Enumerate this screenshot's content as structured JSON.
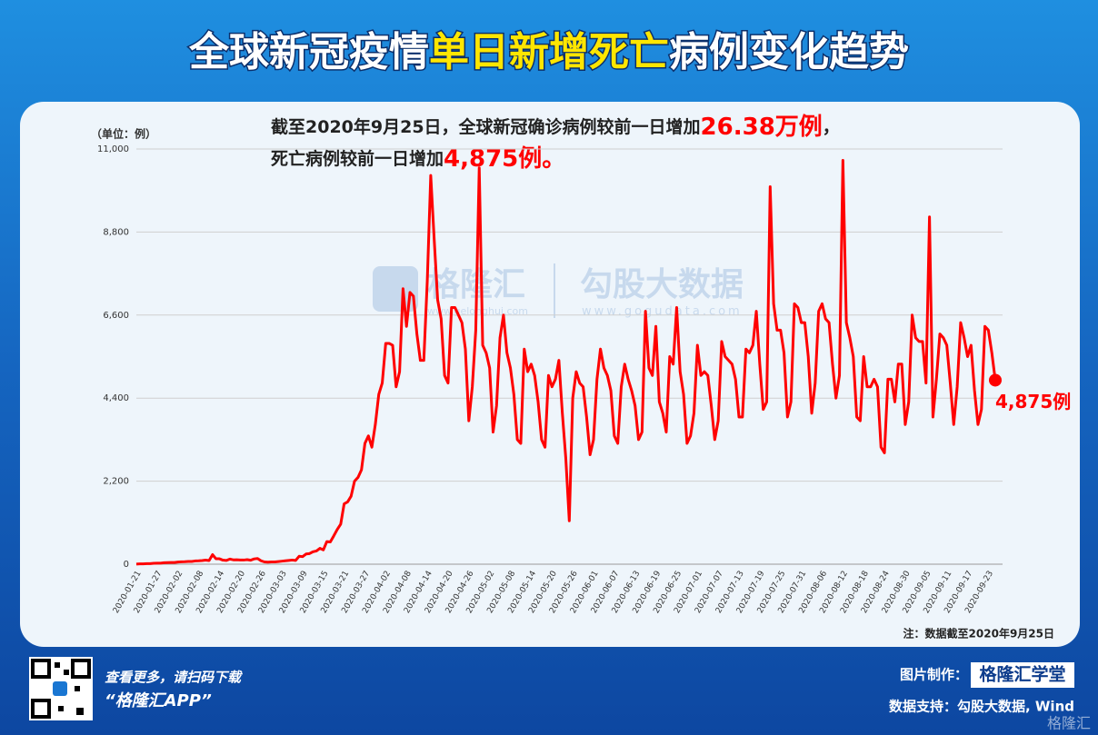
{
  "header": {
    "title_parts": [
      "全球新冠疫情",
      "单日新增死亡",
      "病例变化趋势"
    ]
  },
  "chart_data": {
    "type": "line",
    "unit_label": "（单位：例）",
    "subtitle": {
      "line1": [
        "截至2020年9月25日，全球新冠确诊病例较前一日增加",
        "26.38万例",
        "，"
      ],
      "line2": [
        "死亡病例较前一日增加",
        "4,875例。"
      ]
    },
    "note": "注：数据截至2020年9月25日",
    "watermarks": [
      "格隆汇",
      "www.gelonghui.com",
      "勾股大数据",
      "www.gogudata.com"
    ],
    "color": "#ff0000",
    "grid": true,
    "ylim": [
      0,
      11000
    ],
    "yticks": [
      0,
      {
        "value": 2200,
        "label": "2,200"
      },
      {
        "value": 4400,
        "label": "4,400"
      },
      {
        "value": 6600,
        "label": "6,600"
      },
      {
        "value": 8800,
        "label": "8,800"
      },
      {
        "value": 11000,
        "label": "11,000"
      }
    ],
    "categories": [
      "2020-01-21",
      null,
      null,
      null,
      null,
      null,
      "2020-01-27",
      null,
      null,
      null,
      null,
      null,
      "2020-02-02",
      null,
      null,
      null,
      null,
      null,
      "2020-02-08",
      null,
      null,
      null,
      null,
      null,
      "2020-02-14",
      null,
      null,
      null,
      null,
      null,
      "2020-02-20",
      null,
      null,
      null,
      null,
      null,
      "2020-02-26",
      null,
      null,
      null,
      null,
      null,
      "2020-03-03",
      null,
      null,
      null,
      null,
      null,
      "2020-03-09",
      null,
      null,
      null,
      null,
      null,
      "2020-03-15",
      null,
      null,
      null,
      null,
      null,
      "2020-03-21",
      null,
      null,
      null,
      null,
      null,
      "2020-03-27",
      null,
      null,
      null,
      null,
      null,
      "2020-04-02",
      null,
      null,
      null,
      null,
      null,
      "2020-04-08",
      null,
      null,
      null,
      null,
      null,
      "2020-04-14",
      null,
      null,
      null,
      null,
      null,
      "2020-04-20",
      null,
      null,
      null,
      null,
      null,
      "2020-04-26",
      null,
      null,
      null,
      null,
      null,
      "2020-05-02",
      null,
      null,
      null,
      null,
      null,
      "2020-05-08",
      null,
      null,
      null,
      null,
      null,
      "2020-05-14",
      null,
      null,
      null,
      null,
      null,
      "2020-05-20",
      null,
      null,
      null,
      null,
      null,
      "2020-05-26",
      null,
      null,
      null,
      null,
      null,
      "2020-06-01",
      null,
      null,
      null,
      null,
      null,
      "2020-06-07",
      null,
      null,
      null,
      null,
      null,
      "2020-06-13",
      null,
      null,
      null,
      null,
      null,
      "2020-06-19",
      null,
      null,
      null,
      null,
      null,
      "2020-06-25",
      null,
      null,
      null,
      null,
      null,
      "2020-07-01",
      null,
      null,
      null,
      null,
      null,
      "2020-07-07",
      null,
      null,
      null,
      null,
      null,
      "2020-07-13",
      null,
      null,
      null,
      null,
      null,
      "2020-07-19",
      null,
      null,
      null,
      null,
      null,
      "2020-07-25",
      null,
      null,
      null,
      null,
      null,
      "2020-07-31",
      null,
      null,
      null,
      null,
      null,
      "2020-08-06",
      null,
      null,
      null,
      null,
      null,
      "2020-08-12",
      null,
      null,
      null,
      null,
      null,
      "2020-08-18",
      null,
      null,
      null,
      null,
      null,
      "2020-08-24",
      null,
      null,
      null,
      null,
      null,
      "2020-08-30",
      null,
      null,
      null,
      null,
      null,
      "2020-09-05",
      null,
      null,
      null,
      null,
      null,
      "2020-09-11",
      null,
      null,
      null,
      null,
      null,
      "2020-09-17",
      null,
      null,
      null,
      null,
      null,
      "2020-09-23",
      null,
      null
    ],
    "values": [
      3,
      9,
      8,
      16,
      15,
      24,
      26,
      26,
      38,
      43,
      46,
      45,
      57,
      64,
      66,
      73,
      73,
      86,
      89,
      97,
      108,
      97,
      254,
      143,
      143,
      107,
      100,
      136,
      115,
      118,
      110,
      110,
      120,
      105,
      140,
      150,
      90,
      60,
      55,
      60,
      60,
      70,
      80,
      90,
      100,
      110,
      100,
      210,
      200,
      270,
      280,
      330,
      350,
      420,
      380,
      600,
      590,
      750,
      920,
      1060,
      1600,
      1650,
      1800,
      2200,
      2300,
      2500,
      3200,
      3400,
      3100,
      3700,
      4500,
      4800,
      5850,
      5850,
      5800,
      4700,
      5100,
      7300,
      6300,
      7200,
      7100,
      6100,
      5400,
      5400,
      7500,
      10300,
      8600,
      7000,
      6500,
      5000,
      4800,
      6800,
      6800,
      6600,
      6400,
      5700,
      3800,
      4700,
      6200,
      10500,
      5800,
      5600,
      5200,
      3500,
      4200,
      6000,
      6600,
      5600,
      5200,
      4500,
      3300,
      3200,
      5700,
      5100,
      5300,
      5000,
      4300,
      3300,
      3100,
      5000,
      4700,
      4900,
      5400,
      4000,
      2800,
      1150,
      4400,
      5100,
      4800,
      4700,
      3900,
      2900,
      3300,
      4900,
      5700,
      5200,
      5000,
      4600,
      3400,
      3200,
      4700,
      5300,
      4900,
      4600,
      4200,
      3300,
      3500,
      6700,
      5200,
      5000,
      6300,
      4300,
      4000,
      3500,
      5500,
      5300,
      6800,
      5100,
      4500,
      3200,
      3400,
      4000,
      5800,
      5000,
      5100,
      5000,
      4200,
      3300,
      3800,
      5900,
      5500,
      5400,
      5300,
      4900,
      3900,
      3900,
      5700,
      5600,
      5800,
      6700,
      5300,
      4100,
      4300,
      10000,
      6900,
      6200,
      6200,
      5600,
      3900,
      4300,
      6900,
      6800,
      6400,
      6400,
      5500,
      4000,
      4800,
      6700,
      6900,
      6500,
      6400,
      5300,
      4400,
      5000,
      10700,
      6400,
      6000,
      5500,
      3900,
      3800,
      5500,
      4700,
      4700,
      4900,
      4700,
      3100,
      2950,
      4900,
      4900,
      4300,
      5300,
      5300,
      3700,
      4300,
      6600,
      6000,
      5900,
      5900,
      4800,
      9200,
      3900,
      4900,
      6100,
      6000,
      5800,
      4800,
      3700,
      4700,
      6400,
      6000,
      5500,
      5800,
      4600,
      3700,
      4100,
      6300,
      6200,
      5600,
      4875
    ],
    "value_labels": [
      null,
      null,
      null,
      null,
      null,
      null,
      null,
      null,
      null,
      null,
      null,
      null,
      null,
      null,
      null,
      null,
      null,
      null,
      null,
      null,
      null,
      null,
      null,
      null,
      null,
      null,
      null,
      null,
      null,
      null,
      null,
      null,
      null,
      null,
      null,
      null,
      null,
      null,
      null,
      null,
      null,
      null,
      null,
      null,
      null,
      null,
      null,
      null,
      null,
      null,
      null,
      null,
      null,
      null,
      null,
      null,
      null,
      null,
      null,
      null,
      null,
      null,
      null,
      null,
      null,
      null,
      null,
      null,
      null,
      null,
      null,
      null,
      null,
      null,
      null,
      null,
      null,
      null,
      null,
      null,
      null,
      null,
      null,
      null,
      null,
      null,
      null,
      null,
      null,
      null,
      null,
      null,
      null,
      null,
      null,
      null,
      null,
      null,
      null,
      null,
      null,
      null,
      null,
      null,
      null,
      null,
      null,
      null,
      null,
      null,
      null,
      null,
      null,
      null,
      null,
      null,
      null,
      null,
      null,
      null,
      null,
      null,
      null,
      null,
      null,
      null,
      null,
      null,
      null,
      null,
      null,
      null,
      null,
      null,
      null,
      null,
      null,
      null,
      null,
      null,
      null,
      null,
      null,
      null,
      null,
      null,
      null,
      null,
      null,
      null,
      null,
      null,
      null,
      null,
      null,
      null,
      null,
      null,
      null,
      null,
      null,
      null,
      null,
      null,
      null,
      null,
      null,
      null,
      null,
      null,
      null,
      null,
      null,
      null,
      null,
      null,
      null,
      null,
      null,
      null,
      null,
      null,
      null,
      null,
      null,
      null,
      null,
      null,
      null,
      null,
      null,
      null,
      null,
      null,
      null,
      null,
      null,
      null,
      null,
      null,
      null,
      null,
      null,
      null,
      null,
      null,
      null,
      null,
      null,
      null,
      null,
      null,
      null,
      null,
      null,
      null,
      null,
      null,
      null,
      null,
      null,
      null,
      null,
      null,
      null,
      null,
      null,
      null,
      null,
      null,
      null,
      null,
      null,
      null,
      null,
      null,
      null,
      null,
      null,
      null,
      null,
      null,
      null,
      null,
      null,
      null,
      null,
      null,
      "4,875例"
    ]
  },
  "footer": {
    "qr_text": "查看更多，请扫码下载",
    "app_name": "“格隆汇APP”",
    "made_by_label": "图片制作：",
    "made_by": "格隆汇学堂",
    "data_support": "数据支持：勾股大数据, Wind",
    "corner_logo": "格隆汇"
  }
}
